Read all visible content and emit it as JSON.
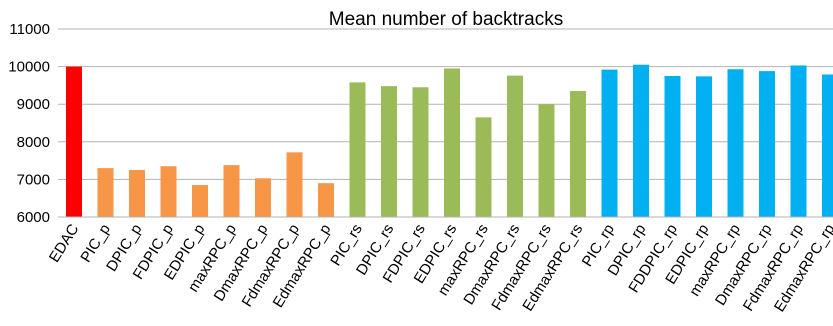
{
  "chart_data": {
    "type": "bar",
    "title": "Mean number of backtracks",
    "xlabel": "",
    "ylabel": "",
    "ylim": [
      6000,
      11000
    ],
    "yticks": [
      6000,
      7000,
      8000,
      9000,
      10000,
      11000
    ],
    "grid": true,
    "legend": "none",
    "categories": [
      "EDAC",
      "PIC_p",
      "DPIC_p",
      "FDPIC_p",
      "EDPIC_p",
      "maxRPC_p",
      "DmaxRPC_p",
      "FdmaxRPC_p",
      "EdmaxRPC_p",
      "PIC_rs",
      "DPIC_rs",
      "FDPIC_rs",
      "EDPIC_rs",
      "maxRPC_rs",
      "DmaxRPC_rs",
      "FdmaxRPC_rs",
      "EdmaxRPC_rs",
      "PIC_rp",
      "DPIC_rp",
      "FDDPIC_rp",
      "EDPIC_rp",
      "maxRPC_rp",
      "DmaxRPC_rp",
      "FdmaxRPC_rp",
      "EdmaxRPC_rp"
    ],
    "values": [
      10000,
      7300,
      7250,
      7350,
      6850,
      7380,
      7030,
      7720,
      6900,
      9580,
      9480,
      9450,
      9950,
      8650,
      9760,
      9000,
      9350,
      9920,
      10050,
      9750,
      9740,
      9930,
      9880,
      10030,
      9790
    ],
    "colors": [
      "#ff0000",
      "#f79646",
      "#f79646",
      "#f79646",
      "#f79646",
      "#f79646",
      "#f79646",
      "#f79646",
      "#f79646",
      "#9bbb59",
      "#9bbb59",
      "#9bbb59",
      "#9bbb59",
      "#9bbb59",
      "#9bbb59",
      "#9bbb59",
      "#9bbb59",
      "#00b0f0",
      "#00b0f0",
      "#00b0f0",
      "#00b0f0",
      "#00b0f0",
      "#00b0f0",
      "#00b0f0",
      "#00b0f0"
    ]
  }
}
